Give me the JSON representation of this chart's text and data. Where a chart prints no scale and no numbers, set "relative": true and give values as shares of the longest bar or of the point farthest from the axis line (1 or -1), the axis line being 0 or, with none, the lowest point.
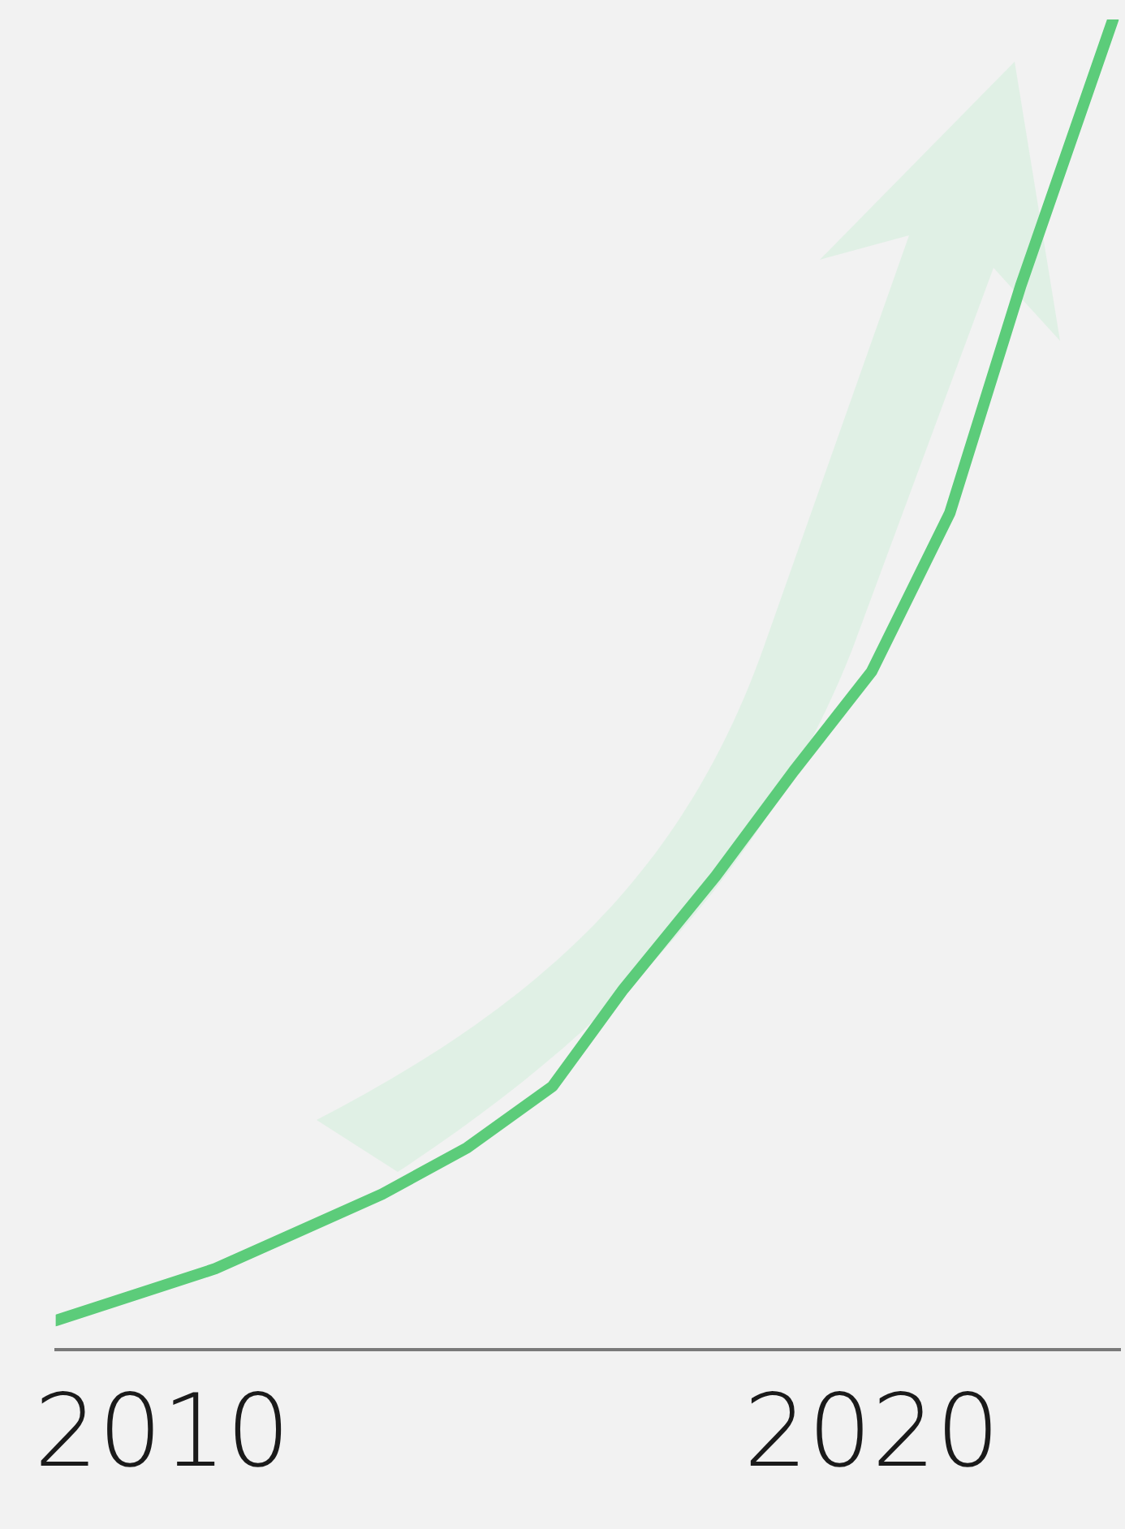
{
  "chart_data": {
    "type": "line",
    "relative": true,
    "x": [
      2008.5,
      2010.75,
      2013.1,
      2014.3,
      2015.5,
      2016.5,
      2017.8,
      2018.9,
      2020.0,
      2021.1,
      2022.1,
      2023.4
    ],
    "series": [
      {
        "color": "#5ccc7a",
        "values": [
          0.022,
          0.061,
          0.117,
          0.152,
          0.198,
          0.271,
          0.356,
          0.435,
          0.51,
          0.629,
          0.8,
          1
        ]
      }
    ],
    "xlim": [
      2008.5,
      2023.5
    ],
    "xticks": [
      2010,
      2020
    ],
    "tick_labels": "x",
    "grid": false,
    "legend": false,
    "marker": "none",
    "line_style": "solid"
  }
}
